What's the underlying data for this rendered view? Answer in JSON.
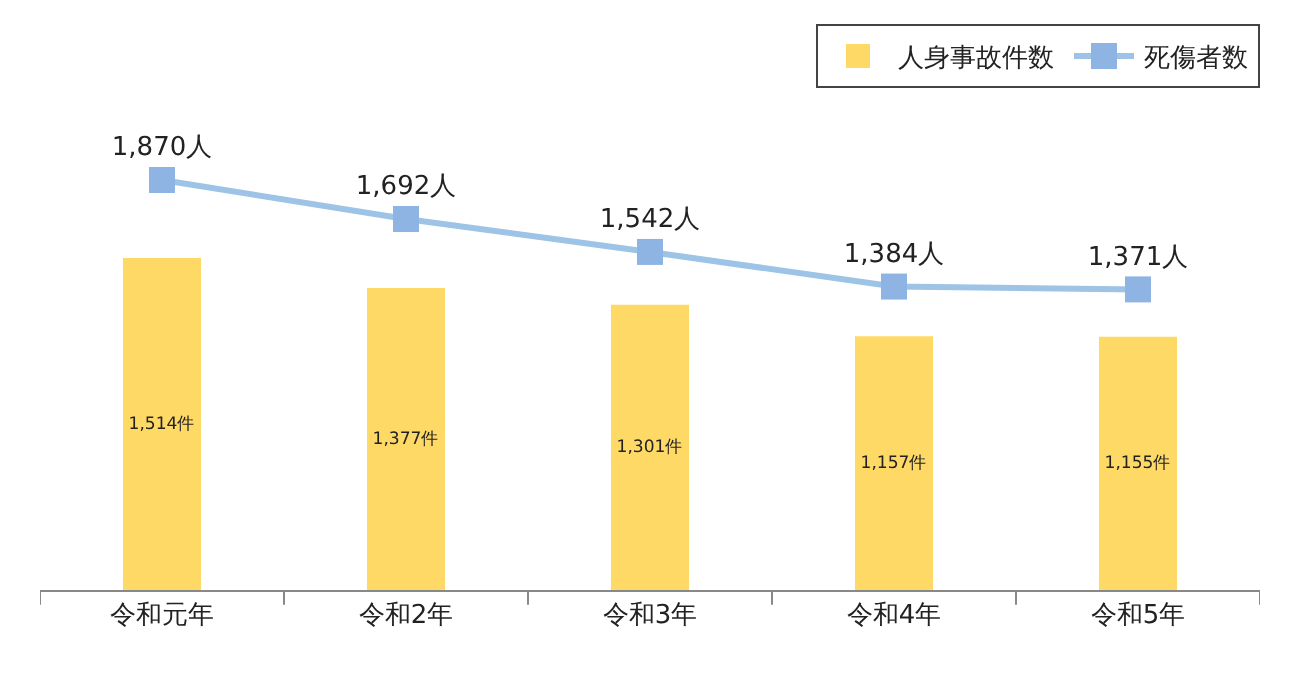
{
  "chart_data": {
    "type": "bar",
    "categories": [
      "令和元年",
      "令和2年",
      "令和3年",
      "令和4年",
      "令和5年"
    ],
    "series": [
      {
        "name": "人身事故件数",
        "color": "#ffd966",
        "values": [
          1514,
          1377,
          1301,
          1157,
          1155
        ],
        "value_labels": [
          "1,514件",
          "1,377件",
          "1,301件",
          "1,157件",
          "1,155件"
        ]
      },
      {
        "name": "死傷者数",
        "type": "line",
        "color": "#9dc3e6",
        "marker": "square",
        "values": [
          1870,
          1692,
          1542,
          1384,
          1371
        ],
        "value_labels": [
          "1,870人",
          "1,692人",
          "1,542人",
          "1,384人",
          "1,371人"
        ]
      }
    ],
    "legend": "top right"
  }
}
